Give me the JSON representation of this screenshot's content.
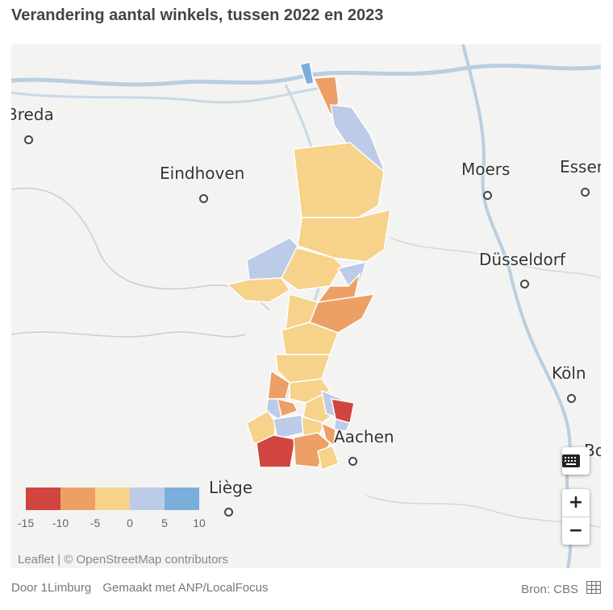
{
  "title": "Verandering aantal winkels, tussen 2022 en 2023",
  "cities": [
    {
      "name": "Breda"
    },
    {
      "name": "Eindhoven"
    },
    {
      "name": "Moers"
    },
    {
      "name": "Essen"
    },
    {
      "name": "Düsseldorf"
    },
    {
      "name": "Köln"
    },
    {
      "name": "Aachen"
    },
    {
      "name": "Liège"
    },
    {
      "name": "Bonn"
    }
  ],
  "legend": {
    "colors": [
      "#d04540",
      "#eca065",
      "#f6d28a",
      "#bccbe8",
      "#7aaedb"
    ],
    "ticks": [
      "-15",
      "-10",
      "-5",
      "0",
      "5",
      "10"
    ]
  },
  "controls": {
    "keyboard_icon": "keyboard-icon",
    "zoom_in": "+",
    "zoom_out": "−"
  },
  "attribution": "Leaflet | © OpenStreetMap contributors",
  "footer": {
    "by": "Door 1Limburg",
    "made_with": "Gemaakt met ANP/LocalFocus",
    "source": "Bron: CBS",
    "table_icon": "table-icon"
  }
}
